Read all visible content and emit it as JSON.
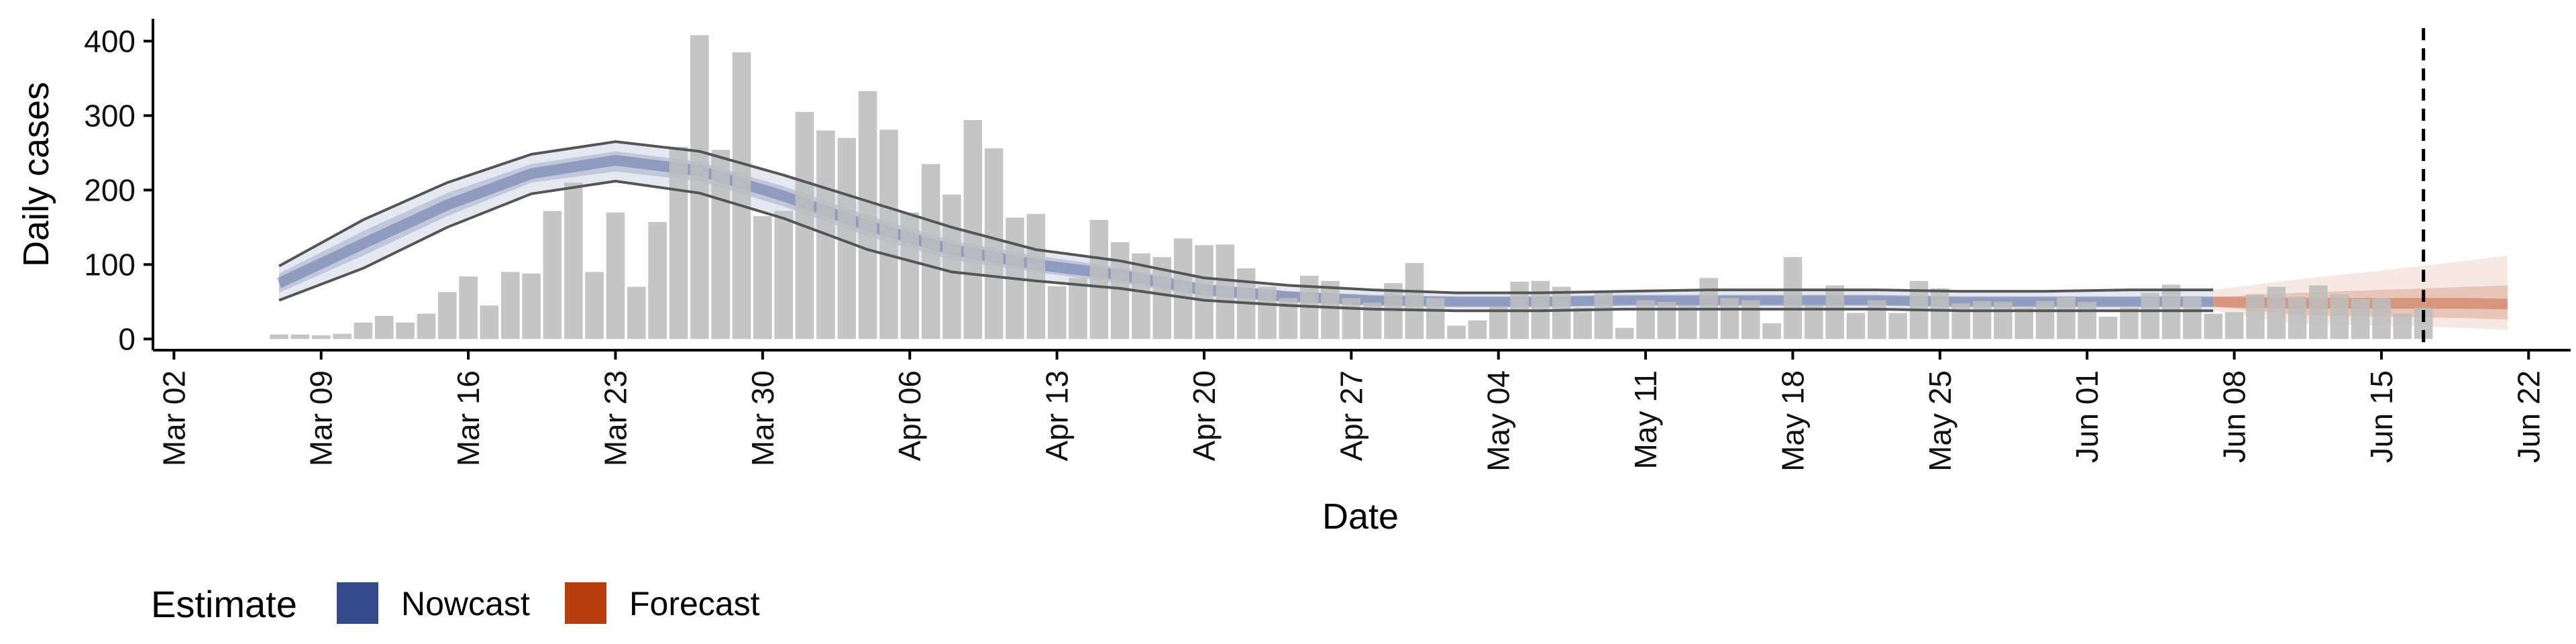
{
  "chart_data": {
    "type": "bar",
    "xlabel": "Date",
    "ylabel": "Daily cases",
    "x_range": [
      "2020-03-01",
      "2020-06-24"
    ],
    "ylim": [
      -15,
      430
    ],
    "y_ticks": [
      0,
      100,
      200,
      300,
      400
    ],
    "x_ticks": [
      {
        "date": "2020-03-02",
        "label": "Mar 02"
      },
      {
        "date": "2020-03-09",
        "label": "Mar 09"
      },
      {
        "date": "2020-03-16",
        "label": "Mar 16"
      },
      {
        "date": "2020-03-23",
        "label": "Mar 23"
      },
      {
        "date": "2020-03-30",
        "label": "Mar 30"
      },
      {
        "date": "2020-04-06",
        "label": "Apr 06"
      },
      {
        "date": "2020-04-13",
        "label": "Apr 13"
      },
      {
        "date": "2020-04-20",
        "label": "Apr 20"
      },
      {
        "date": "2020-04-27",
        "label": "Apr 27"
      },
      {
        "date": "2020-05-04",
        "label": "May 04"
      },
      {
        "date": "2020-05-11",
        "label": "May 11"
      },
      {
        "date": "2020-05-18",
        "label": "May 18"
      },
      {
        "date": "2020-05-25",
        "label": "May 25"
      },
      {
        "date": "2020-06-01",
        "label": "Jun 01"
      },
      {
        "date": "2020-06-08",
        "label": "Jun 08"
      },
      {
        "date": "2020-06-15",
        "label": "Jun 15"
      },
      {
        "date": "2020-06-22",
        "label": "Jun 22"
      }
    ],
    "grid": false,
    "reference_line_date": "2020-06-17",
    "bar_color": "#bdbdbd",
    "daily_cases": {
      "dates": [
        "2020-03-07",
        "2020-03-08",
        "2020-03-09",
        "2020-03-10",
        "2020-03-11",
        "2020-03-12",
        "2020-03-13",
        "2020-03-14",
        "2020-03-15",
        "2020-03-16",
        "2020-03-17",
        "2020-03-18",
        "2020-03-19",
        "2020-03-20",
        "2020-03-21",
        "2020-03-22",
        "2020-03-23",
        "2020-03-24",
        "2020-03-25",
        "2020-03-26",
        "2020-03-27",
        "2020-03-28",
        "2020-03-29",
        "2020-03-30",
        "2020-03-31",
        "2020-04-01",
        "2020-04-02",
        "2020-04-03",
        "2020-04-04",
        "2020-04-05",
        "2020-04-06",
        "2020-04-07",
        "2020-04-08",
        "2020-04-09",
        "2020-04-10",
        "2020-04-11",
        "2020-04-12",
        "2020-04-13",
        "2020-04-14",
        "2020-04-15",
        "2020-04-16",
        "2020-04-17",
        "2020-04-18",
        "2020-04-19",
        "2020-04-20",
        "2020-04-21",
        "2020-04-22",
        "2020-04-23",
        "2020-04-24",
        "2020-04-25",
        "2020-04-26",
        "2020-04-27",
        "2020-04-28",
        "2020-04-29",
        "2020-04-30",
        "2020-05-01",
        "2020-05-02",
        "2020-05-03",
        "2020-05-04",
        "2020-05-05",
        "2020-05-06",
        "2020-05-07",
        "2020-05-08",
        "2020-05-09",
        "2020-05-10",
        "2020-05-11",
        "2020-05-12",
        "2020-05-13",
        "2020-05-14",
        "2020-05-15",
        "2020-05-16",
        "2020-05-17",
        "2020-05-18",
        "2020-05-19",
        "2020-05-20",
        "2020-05-21",
        "2020-05-22",
        "2020-05-23",
        "2020-05-24",
        "2020-05-25",
        "2020-05-26",
        "2020-05-27",
        "2020-05-28",
        "2020-05-29",
        "2020-05-30",
        "2020-05-31",
        "2020-06-01",
        "2020-06-02",
        "2020-06-03",
        "2020-06-04",
        "2020-06-05",
        "2020-06-06",
        "2020-06-07",
        "2020-06-08",
        "2020-06-09",
        "2020-06-10",
        "2020-06-11",
        "2020-06-12",
        "2020-06-13",
        "2020-06-14",
        "2020-06-15",
        "2020-06-16",
        "2020-06-17"
      ],
      "values": [
        6,
        6,
        5,
        7,
        22,
        31,
        22,
        34,
        63,
        84,
        45,
        90,
        88,
        172,
        210,
        90,
        170,
        70,
        157,
        258,
        408,
        254,
        385,
        165,
        172,
        305,
        280,
        270,
        333,
        281,
        170,
        235,
        194,
        294,
        256,
        163,
        168,
        71,
        82,
        160,
        130,
        115,
        110,
        135,
        126,
        127,
        95,
        70,
        55,
        85,
        78,
        55,
        49,
        75,
        102,
        55,
        18,
        25,
        43,
        77,
        78,
        70,
        42,
        62,
        15,
        52,
        50,
        45,
        82,
        55,
        52,
        21,
        110,
        45,
        72,
        35,
        52,
        35,
        78,
        68,
        48,
        51,
        50,
        42,
        51,
        56,
        50,
        30,
        42,
        62,
        73,
        56,
        34,
        36,
        60,
        70,
        57,
        72,
        60,
        54,
        55,
        34,
        42
      ]
    },
    "estimates": {
      "dates": [
        "2020-03-07",
        "2020-03-11",
        "2020-03-15",
        "2020-03-19",
        "2020-03-23",
        "2020-03-27",
        "2020-03-31",
        "2020-04-04",
        "2020-04-08",
        "2020-04-12",
        "2020-04-16",
        "2020-04-20",
        "2020-04-24",
        "2020-04-28",
        "2020-05-02",
        "2020-05-06",
        "2020-05-10",
        "2020-05-14",
        "2020-05-18",
        "2020-05-22",
        "2020-05-26",
        "2020-05-30",
        "2020-06-03",
        "2020-06-07",
        "2020-06-11",
        "2020-06-15",
        "2020-06-19",
        "2020-06-21"
      ],
      "kind": [
        "nowcast",
        "nowcast",
        "nowcast",
        "nowcast",
        "nowcast",
        "nowcast",
        "nowcast",
        "nowcast",
        "nowcast",
        "nowcast",
        "nowcast",
        "nowcast",
        "nowcast",
        "nowcast",
        "nowcast",
        "nowcast",
        "nowcast",
        "nowcast",
        "nowcast",
        "nowcast",
        "nowcast",
        "nowcast",
        "nowcast",
        "nowcast",
        "forecast",
        "forecast",
        "forecast",
        "forecast"
      ],
      "lower_90": [
        52,
        95,
        150,
        195,
        212,
        196,
        162,
        120,
        90,
        78,
        68,
        52,
        45,
        40,
        38,
        38,
        40,
        40,
        40,
        40,
        38,
        38,
        38,
        38,
        20,
        18,
        15,
        12
      ],
      "lower_50": [
        62,
        112,
        165,
        210,
        225,
        212,
        178,
        138,
        106,
        90,
        75,
        58,
        50,
        46,
        44,
        44,
        46,
        46,
        46,
        46,
        44,
        44,
        44,
        44,
        32,
        30,
        28,
        26
      ],
      "median": [
        75,
        128,
        180,
        222,
        240,
        226,
        192,
        152,
        120,
        100,
        86,
        66,
        57,
        52,
        50,
        50,
        52,
        52,
        52,
        52,
        50,
        50,
        50,
        50,
        48,
        48,
        48,
        47
      ],
      "upper_50": [
        88,
        145,
        196,
        235,
        252,
        238,
        205,
        166,
        132,
        112,
        96,
        74,
        64,
        58,
        56,
        56,
        58,
        58,
        58,
        58,
        56,
        56,
        56,
        56,
        62,
        66,
        70,
        72
      ],
      "upper_90": [
        98,
        160,
        210,
        248,
        265,
        252,
        220,
        185,
        150,
        120,
        105,
        82,
        72,
        66,
        62,
        62,
        64,
        66,
        66,
        66,
        64,
        64,
        66,
        66,
        80,
        92,
        105,
        112
      ]
    },
    "legend": {
      "title": "Estimate",
      "position": "bottom-left",
      "items": [
        {
          "label": "Nowcast",
          "color": "#344b8b"
        },
        {
          "label": "Forecast",
          "color": "#b83e10"
        }
      ]
    }
  }
}
